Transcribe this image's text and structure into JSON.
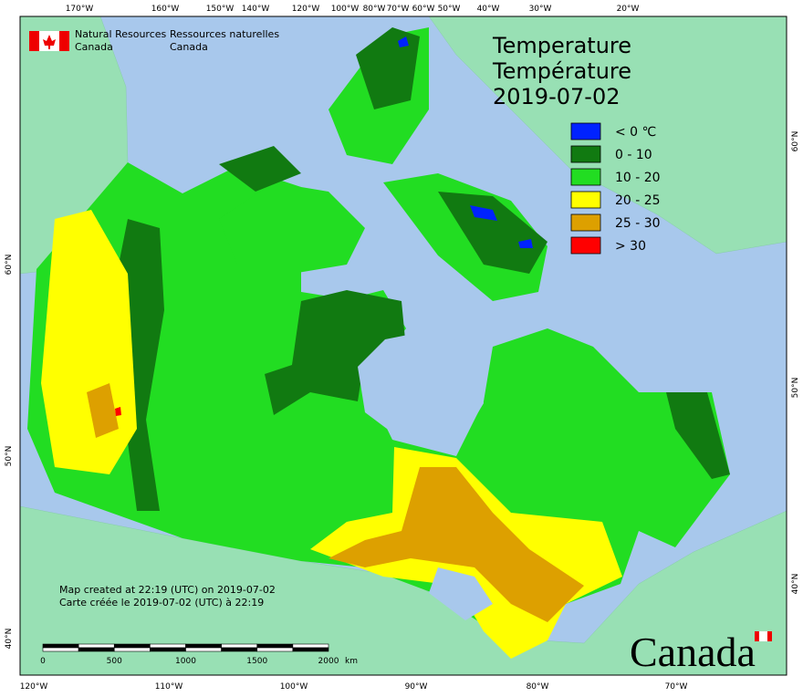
{
  "header": {
    "org_en": [
      "Natural Resources",
      "Canada"
    ],
    "org_fr": [
      "Ressources naturelles",
      "Canada"
    ]
  },
  "title": [
    "Temperature",
    "Température",
    "2019-07-02"
  ],
  "legend": [
    {
      "label": "< 0 ℃",
      "color": "#0022ff"
    },
    {
      "label": "0 - 10",
      "color": "#117a11"
    },
    {
      "label": "10 - 20",
      "color": "#22dd22"
    },
    {
      "label": "20 - 25",
      "color": "#ffff00"
    },
    {
      "label": "25 - 30",
      "color": "#dda000"
    },
    {
      "label": "> 30",
      "color": "#ff0000"
    }
  ],
  "graticule": {
    "top": [
      "170°W",
      "160°W",
      "150°W",
      "140°W",
      "120°W",
      "100°W",
      "80°W",
      "70°W",
      "60°W",
      "50°W",
      "40°W",
      "30°W",
      "20°W"
    ],
    "bottom": [
      "120°W",
      "110°W",
      "100°W",
      "90°W",
      "80°W",
      "70°W"
    ],
    "left": [
      "60°N",
      "50°N",
      "40°N"
    ],
    "right": [
      "60°N",
      "50°N",
      "40°N"
    ]
  },
  "note": [
    "Map created at 22:19 (UTC) on 2019-07-02",
    "Carte créée le 2019-07-02 (UTC) à 22:19"
  ],
  "scale_bar": {
    "labels": [
      "0",
      "500",
      "1000",
      "1500",
      "2000"
    ],
    "unit": "km"
  },
  "wordmark": "Canada"
}
